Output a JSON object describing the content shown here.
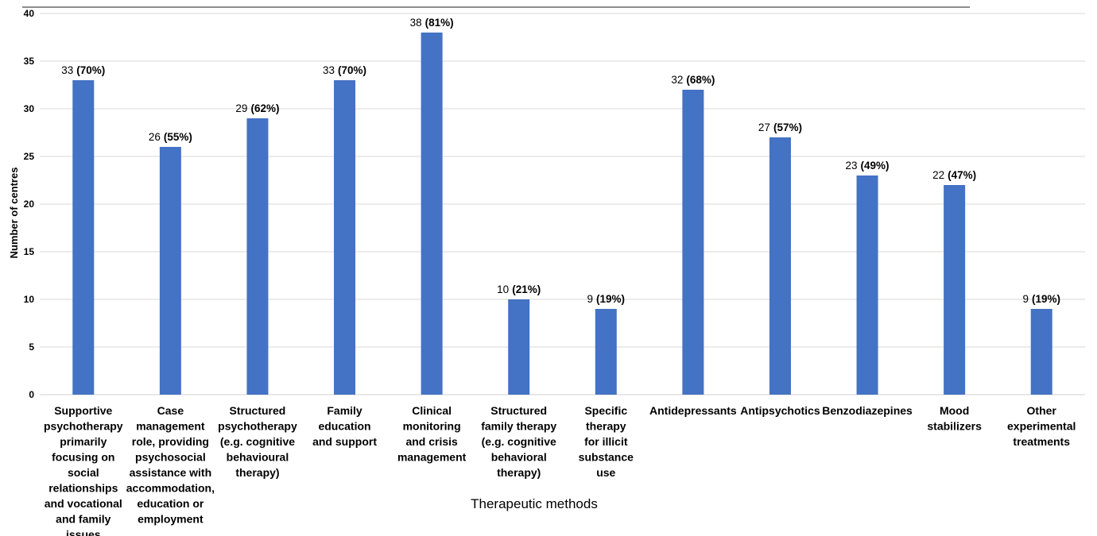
{
  "chart_data": {
    "type": "bar",
    "xlabel": "Therapeutic methods",
    "ylabel": "Number of centres",
    "ylim": [
      0,
      40
    ],
    "yticks": [
      0,
      5,
      10,
      15,
      20,
      25,
      30,
      35,
      40
    ],
    "grid": true,
    "color": "#4472c4",
    "categories": [
      "Supportive psychotherapy primarily focusing on social relationships and vocational and family issues",
      "Case management role, providing psychosocial assistance with accommodation, education or employment",
      "Structured psychotherapy (e.g. cognitive behavioural therapy)",
      "Family education and support",
      "Clinical monitoring and crisis management",
      "Structured family therapy (e.g. cognitive behavioral therapy)",
      "Specific therapy for illicit substance use",
      "Antidepressants",
      "Antipsychotics",
      "Benzodiazepines",
      "Mood stabilizers",
      "Other experimental treatments"
    ],
    "category_lines": [
      [
        "Supportive",
        "psychotherapy",
        "primarily",
        "focusing on",
        "social",
        "relationships",
        "and vocational",
        "and family",
        "issues"
      ],
      [
        "Case",
        "management",
        "role, providing",
        "psychosocial",
        "assistance with",
        "accommodation,",
        "education or",
        "employment"
      ],
      [
        "Structured",
        "psychotherapy",
        "(e.g. cognitive",
        "behavioural",
        "therapy)"
      ],
      [
        "Family",
        "education",
        "and support"
      ],
      [
        "Clinical",
        "monitoring",
        "and crisis",
        "management"
      ],
      [
        "Structured",
        "family therapy",
        "(e.g. cognitive",
        "behavioral",
        "therapy)"
      ],
      [
        "Specific",
        "therapy",
        "for illicit",
        "substance",
        "use"
      ],
      [
        "Antidepressants"
      ],
      [
        "Antipsychotics"
      ],
      [
        "Benzodiazepines"
      ],
      [
        "Mood",
        "stabilizers"
      ],
      [
        "Other",
        "experimental",
        "treatments"
      ]
    ],
    "values": [
      33,
      26,
      29,
      33,
      38,
      10,
      9,
      32,
      27,
      23,
      22,
      9
    ],
    "percent_labels": [
      "(70%)",
      "(55%)",
      "(62%)",
      "(70%)",
      "(81%)",
      "(21%)",
      "(19%)",
      "(68%)",
      "(57%)",
      "(49%)",
      "(47%)",
      "(19%)"
    ]
  }
}
